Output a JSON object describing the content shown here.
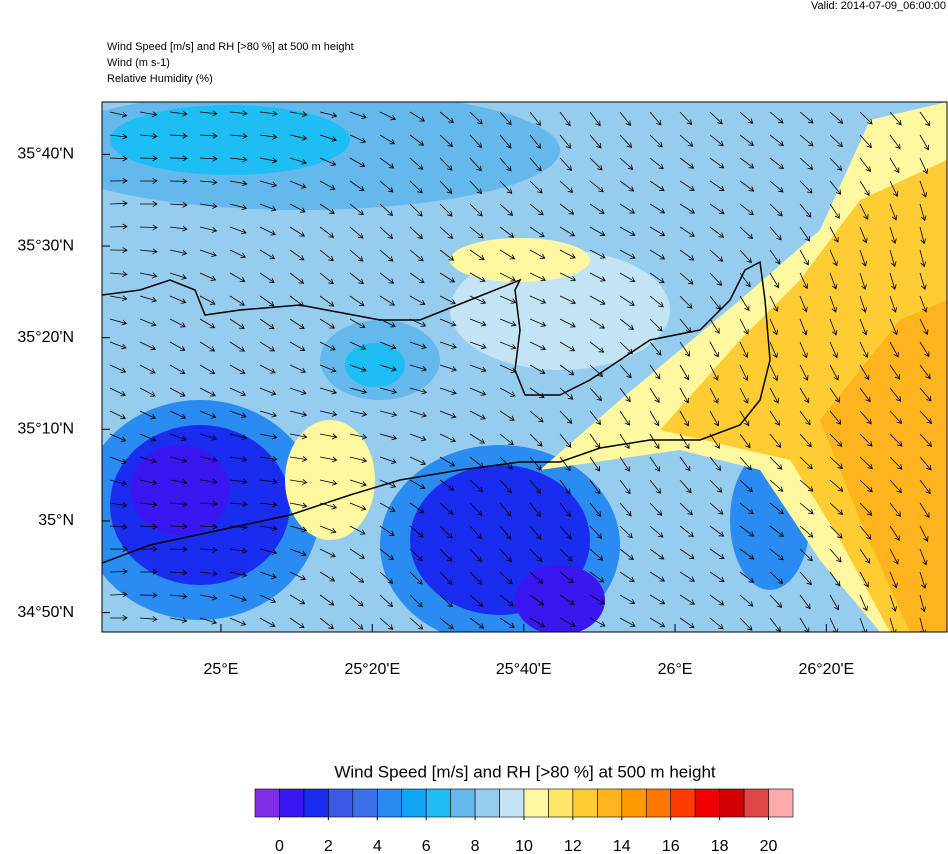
{
  "header": {
    "valid": "Valid: 2014-07-09_06:00:00",
    "lines": [
      "Wind Speed [m/s] and RH [>80 %] at 500 m height",
      "Wind   (m s-1)",
      "Relative Humidity   (%)"
    ]
  },
  "map": {
    "xlim": [
      24.738,
      26.599
    ],
    "ylim": [
      34.798,
      35.762
    ],
    "xticks": [
      {
        "value": 25,
        "label": "25°E"
      },
      {
        "value": 25.3333,
        "label": "25°20'E"
      },
      {
        "value": 25.6667,
        "label": "25°40'E"
      },
      {
        "value": 26,
        "label": "26°E"
      },
      {
        "value": 26.3333,
        "label": "26°20'E"
      }
    ],
    "yticks": [
      {
        "value": 34.8333,
        "label": "34°50'N"
      },
      {
        "value": 35,
        "label": "35°N"
      },
      {
        "value": 35.1667,
        "label": "35°10'N"
      },
      {
        "value": 35.3333,
        "label": "35°20'N"
      },
      {
        "value": 35.5,
        "label": "35°30'N"
      },
      {
        "value": 35.6667,
        "label": "35°40'N"
      }
    ]
  },
  "colorbar": {
    "title": "Wind Speed [m/s] and RH [>80 %] at 500 m height",
    "lim": [
      -1,
      21
    ],
    "ticks": [
      0,
      2,
      4,
      6,
      8,
      10,
      12,
      14,
      16,
      18,
      20
    ],
    "colors": [
      "#7f2ee6",
      "#3a16f0",
      "#1a2cf0",
      "#3a5ae6",
      "#3b6fe8",
      "#2a8cf0",
      "#14a4f5",
      "#1ebef5",
      "#64b8ec",
      "#96cdee",
      "#c2e4f5",
      "#fff8a0",
      "#ffe566",
      "#ffcc33",
      "#ffb41e",
      "#ff9a00",
      "#ff7800",
      "#ff3c00",
      "#f00000",
      "#d20000",
      "#dc4646",
      "#ffaaaa"
    ]
  }
}
